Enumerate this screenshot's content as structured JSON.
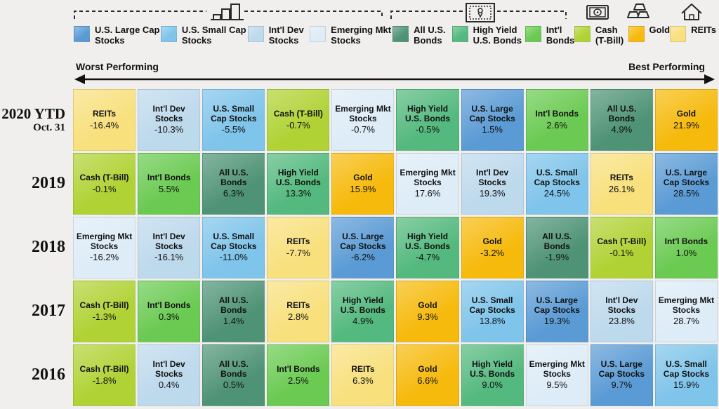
{
  "app": {
    "background": "#f0efed",
    "text_color": "#111111"
  },
  "axis": {
    "worst": "Worst Performing",
    "best": "Best Performing"
  },
  "icons": {
    "stocks_group": "bar-chart-icon",
    "bonds_group": "bond-certificate-icon",
    "cash": "banknote-icon",
    "gold": "gold-bars-icon",
    "reits": "house-icon"
  },
  "assets": {
    "us_large": {
      "label": "U.S. Large Cap Stocks",
      "color": "#5b9bd5"
    },
    "us_small": {
      "label": "U.S. Small Cap Stocks",
      "color": "#7fc4ea"
    },
    "intl_dev": {
      "label": "Int'l Dev Stocks",
      "color": "#bdd9ec"
    },
    "em": {
      "label": "Emerging Mkt Stocks",
      "color": "#ddecf7"
    },
    "all_bonds": {
      "label": "All U.S. Bonds",
      "color": "#4f9376"
    },
    "hy_bonds": {
      "label": "High Yield U.S. Bonds",
      "color": "#54b97e"
    },
    "intl_bonds": {
      "label": "Int'l Bonds",
      "color": "#6aca52"
    },
    "cash": {
      "label": "Cash (T-Bill)",
      "color": "#b0d235"
    },
    "gold": {
      "label": "Gold",
      "color": "#f6ba0c"
    },
    "reits": {
      "label": "REITs",
      "color": "#f8e07d"
    }
  },
  "legend_order": [
    "us_large",
    "us_small",
    "intl_dev",
    "em",
    "all_bonds",
    "hy_bonds",
    "intl_bonds",
    "cash",
    "gold",
    "reits"
  ],
  "chart_data": {
    "type": "heatmap",
    "description": "Annual asset class returns ranked left (worst performing) to right (best performing)",
    "x_axis": {
      "left": "Worst Performing",
      "right": "Best Performing"
    },
    "rows": [
      {
        "period": "2020 YTD",
        "period_sub": "Oct. 31",
        "ranking": [
          {
            "asset": "reits",
            "return_pct": -16.4
          },
          {
            "asset": "intl_dev",
            "return_pct": -10.3
          },
          {
            "asset": "us_small",
            "return_pct": -5.5
          },
          {
            "asset": "cash",
            "return_pct": -0.7
          },
          {
            "asset": "em",
            "return_pct": -0.7
          },
          {
            "asset": "hy_bonds",
            "return_pct": -0.5
          },
          {
            "asset": "us_large",
            "return_pct": 1.5
          },
          {
            "asset": "intl_bonds",
            "return_pct": 2.6
          },
          {
            "asset": "all_bonds",
            "return_pct": 4.9
          },
          {
            "asset": "gold",
            "return_pct": 21.9
          }
        ]
      },
      {
        "period": "2019",
        "period_sub": "",
        "ranking": [
          {
            "asset": "cash",
            "return_pct": -0.1
          },
          {
            "asset": "intl_bonds",
            "return_pct": 5.5
          },
          {
            "asset": "all_bonds",
            "return_pct": 6.3
          },
          {
            "asset": "hy_bonds",
            "return_pct": 13.3
          },
          {
            "asset": "gold",
            "return_pct": 15.9
          },
          {
            "asset": "em",
            "return_pct": 17.6
          },
          {
            "asset": "intl_dev",
            "return_pct": 19.3
          },
          {
            "asset": "us_small",
            "return_pct": 24.5
          },
          {
            "asset": "reits",
            "return_pct": 26.1
          },
          {
            "asset": "us_large",
            "return_pct": 28.5
          }
        ]
      },
      {
        "period": "2018",
        "period_sub": "",
        "ranking": [
          {
            "asset": "em",
            "return_pct": -16.2
          },
          {
            "asset": "intl_dev",
            "return_pct": -16.1
          },
          {
            "asset": "us_small",
            "return_pct": -11.0
          },
          {
            "asset": "reits",
            "return_pct": -7.7
          },
          {
            "asset": "us_large",
            "return_pct": -6.2
          },
          {
            "asset": "hy_bonds",
            "return_pct": -4.7
          },
          {
            "asset": "gold",
            "return_pct": -3.2
          },
          {
            "asset": "all_bonds",
            "return_pct": -1.9
          },
          {
            "asset": "cash",
            "return_pct": -0.1
          },
          {
            "asset": "intl_bonds",
            "return_pct": 1.0
          }
        ]
      },
      {
        "period": "2017",
        "period_sub": "",
        "ranking": [
          {
            "asset": "cash",
            "return_pct": -1.3
          },
          {
            "asset": "intl_bonds",
            "return_pct": 0.3
          },
          {
            "asset": "all_bonds",
            "return_pct": 1.4
          },
          {
            "asset": "reits",
            "return_pct": 2.8
          },
          {
            "asset": "hy_bonds",
            "return_pct": 4.9
          },
          {
            "asset": "gold",
            "return_pct": 9.3
          },
          {
            "asset": "us_small",
            "return_pct": 13.8
          },
          {
            "asset": "us_large",
            "return_pct": 19.3
          },
          {
            "asset": "intl_dev",
            "return_pct": 23.8
          },
          {
            "asset": "em",
            "return_pct": 28.7
          }
        ]
      },
      {
        "period": "2016",
        "period_sub": "",
        "ranking": [
          {
            "asset": "cash",
            "return_pct": -1.8
          },
          {
            "asset": "intl_dev",
            "return_pct": 0.4
          },
          {
            "asset": "all_bonds",
            "return_pct": 0.5
          },
          {
            "asset": "intl_bonds",
            "return_pct": 2.5
          },
          {
            "asset": "reits",
            "return_pct": 6.3
          },
          {
            "asset": "gold",
            "return_pct": 6.6
          },
          {
            "asset": "hy_bonds",
            "return_pct": 9.0
          },
          {
            "asset": "em",
            "return_pct": 9.5
          },
          {
            "asset": "us_large",
            "return_pct": 9.7
          },
          {
            "asset": "us_small",
            "return_pct": 15.9
          }
        ]
      }
    ]
  }
}
